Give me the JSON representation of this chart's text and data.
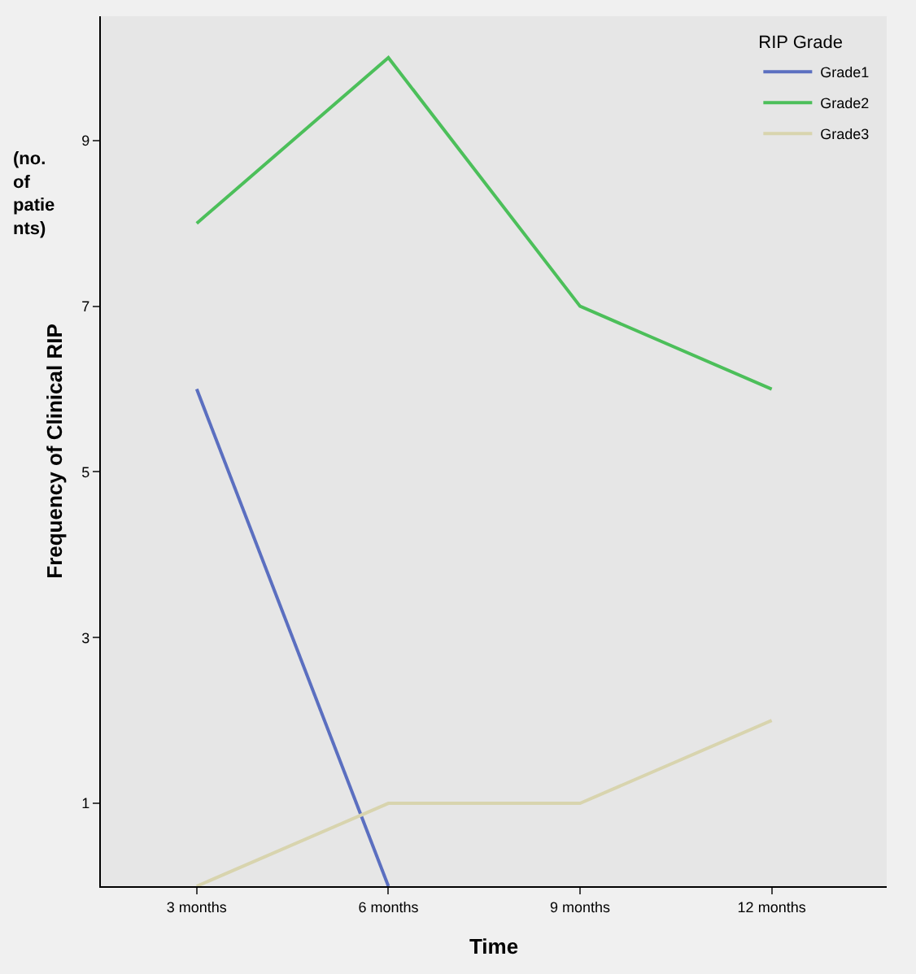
{
  "chart_data": {
    "type": "line",
    "xlabel": "Time",
    "ylabel": "Frequency of Clinical RIP",
    "legend_title": "RIP Grade",
    "annotations": [
      "(no.\nof\npatie\nnts)"
    ],
    "categories": [
      "3 months",
      "6 months",
      "9 months",
      "12 months"
    ],
    "series": [
      {
        "name": "Grade1",
        "color": "#5b6fc0",
        "values": [
          6,
          0,
          null,
          null
        ]
      },
      {
        "name": "Grade2",
        "color": "#4cbf5a",
        "values": [
          8,
          10,
          7,
          6
        ]
      },
      {
        "name": "Grade3",
        "color": "#d8d4ae",
        "values": [
          0,
          1,
          1,
          2
        ]
      }
    ],
    "ylim": [
      0,
      10.5
    ],
    "yticks": [
      1,
      3,
      5,
      7,
      9
    ],
    "grid": false,
    "legend": "top right",
    "marker": "none",
    "line_style": "solid"
  }
}
